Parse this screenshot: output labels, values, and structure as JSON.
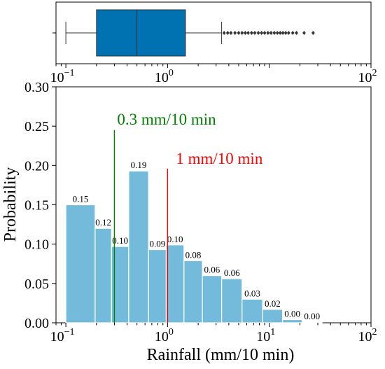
{
  "chart_data": [
    {
      "type": "box",
      "x_scale": "log",
      "xlim": [
        0.08,
        100
      ],
      "whisker_low": 0.1,
      "q1": 0.2,
      "median": 0.5,
      "q3": 1.5,
      "whisker_high": 3.4,
      "outliers": [
        3.6,
        3.9,
        4.2,
        4.6,
        5.0,
        5.4,
        5.8,
        6.2,
        6.7,
        7.2,
        7.8,
        8.4,
        9.0,
        9.7,
        10.4,
        11.2,
        12.0,
        12.8,
        13.6,
        14.5,
        15.5,
        17.0,
        18.5,
        22.0,
        27.0
      ],
      "box_color": "#0072b2",
      "xtick_labels": [
        "10",
        "10",
        "10"
      ],
      "xtick_exponents": [
        "−1",
        "0",
        "2"
      ]
    },
    {
      "type": "bar",
      "x_scale": "log",
      "xlim": [
        0.08,
        100
      ],
      "ylim": [
        0,
        0.3
      ],
      "xlabel": "Rainfall (mm/10 min)",
      "ylabel": "Probability",
      "bar_color": "#74bbdb",
      "bins": [
        {
          "x0": 0.1,
          "x1": 0.194,
          "value": 0.15,
          "label": "0.15"
        },
        {
          "x0": 0.194,
          "x1": 0.281,
          "value": 0.12,
          "label": "0.12"
        },
        {
          "x0": 0.281,
          "x1": 0.415,
          "value": 0.097,
          "label": "0.10"
        },
        {
          "x0": 0.415,
          "x1": 0.65,
          "value": 0.193,
          "label": "0.19"
        },
        {
          "x0": 0.65,
          "x1": 0.97,
          "value": 0.093,
          "label": "0.09"
        },
        {
          "x0": 0.97,
          "x1": 1.45,
          "value": 0.099,
          "label": "0.10"
        },
        {
          "x0": 1.45,
          "x1": 2.2,
          "value": 0.079,
          "label": "0.08"
        },
        {
          "x0": 2.2,
          "x1": 3.4,
          "value": 0.06,
          "label": "0.06"
        },
        {
          "x0": 3.4,
          "x1": 5.4,
          "value": 0.056,
          "label": "0.06"
        },
        {
          "x0": 5.4,
          "x1": 8.6,
          "value": 0.03,
          "label": "0.03"
        },
        {
          "x0": 8.6,
          "x1": 13.5,
          "value": 0.017,
          "label": "0.02"
        },
        {
          "x0": 13.5,
          "x1": 21.0,
          "value": 0.004,
          "label": "0.00"
        },
        {
          "x0": 21.0,
          "x1": 33.0,
          "value": 0.0008,
          "label": "0.00"
        }
      ],
      "yticks": [
        "0.00",
        "0.05",
        "0.10",
        "0.15",
        "0.20",
        "0.25",
        "0.30"
      ],
      "ytick_values": [
        0,
        0.05,
        0.1,
        0.15,
        0.2,
        0.25,
        0.3
      ],
      "xtick_labels": [
        "10",
        "10",
        "10",
        "10"
      ],
      "xtick_exponents": [
        "−1",
        "0",
        "1",
        "2"
      ],
      "annotations": [
        {
          "x": 0.3,
          "y_top": 0.245,
          "text": "0.3 mm/10 min",
          "color": "#008000"
        },
        {
          "x": 1.0,
          "y_top": 0.196,
          "text": "1 mm/10 min",
          "color": "#ff0000"
        }
      ]
    }
  ]
}
